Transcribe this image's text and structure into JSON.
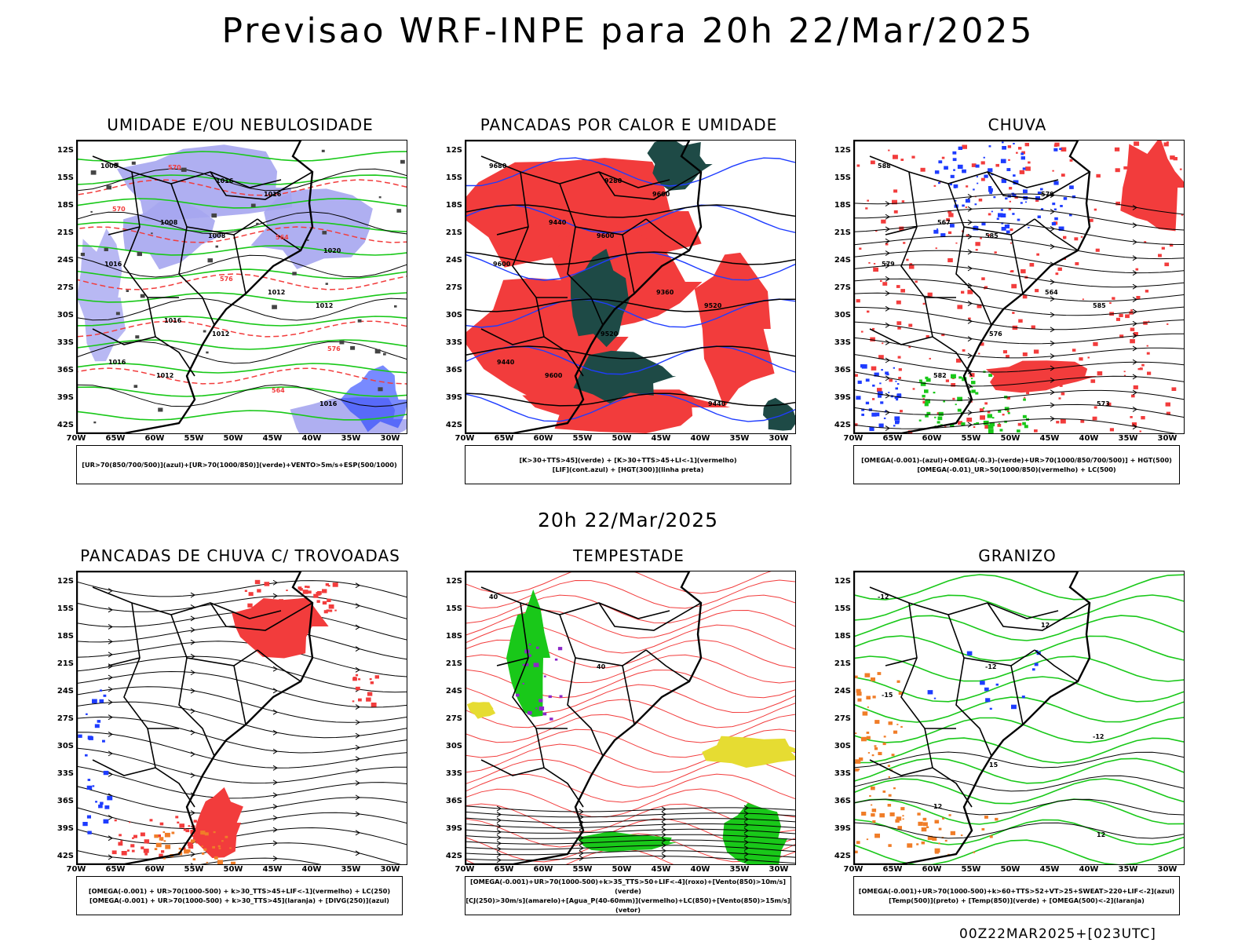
{
  "title": "Previsao WRF-INPE  para 20h 22/Mar/2025",
  "middle_title": "20h 22/Mar/2025",
  "footer": "00Z22MAR2025+[023UTC]",
  "lat_labels": [
    "12S",
    "15S",
    "18S",
    "21S",
    "24S",
    "27S",
    "30S",
    "33S",
    "36S",
    "39S",
    "42S"
  ],
  "lon_labels": [
    "70W",
    "65W",
    "60W",
    "55W",
    "50W",
    "45W",
    "40W",
    "35W",
    "30W"
  ],
  "colors": {
    "red": "#f23c3c",
    "green": "#19c819",
    "blue": "#1e3cff",
    "lilac": "#a6a6f0",
    "dark": "#1e4a46",
    "orange": "#f07d28",
    "yellow": "#e6dc32",
    "purple": "#8c28c8"
  },
  "panels": [
    {
      "title": "UMIDADE E/OU NEBULOSIDADE",
      "legend": [
        "[UR>70(850/700/500)](azul)+[UR>70(1000/850)](verde)+VENTO>5m/s+ESP(500/1000)"
      ],
      "contour_labels": [
        "1008",
        "1008",
        "1012",
        "1012",
        "1016",
        "1016",
        "1012",
        "1016",
        "1008",
        "1012",
        "1016",
        "1016",
        "1020",
        "1016",
        "564",
        "570",
        "576",
        "576",
        "570",
        "564"
      ]
    },
    {
      "title": "PANCADAS POR CALOR E UMIDADE",
      "legend": [
        "[K>30+TTS>45](verde) + [K>30+TTS>45+LI<-1](vermelho)",
        "[LIF](cont.azul) + [HGT(300)](linha preta)"
      ],
      "contour_labels": [
        "9680",
        "9600",
        "9520",
        "9600",
        "9600",
        "9600",
        "9520",
        "9440",
        "9440",
        "9360",
        "9440",
        "9280"
      ]
    },
    {
      "title": "CHUVA",
      "legend": [
        "[OMEGA(-0.001)-(azul)+OMEGA(-0.3)-(verde)+UR>70(1000/850/700/500)] + HGT(500)",
        "[OMEGA(-0.01)_UR>50(1000/850)(vermelho) + LC(500)"
      ],
      "contour_labels": [
        "588",
        "585",
        "585",
        "582",
        "579",
        "579",
        "576",
        "573",
        "567",
        "564"
      ]
    },
    {
      "title": "PANCADAS DE CHUVA C/ TROVOADAS",
      "legend": [
        "[OMEGA(-0.001) + UR>70(1000-500) + k>30_TTS>45+LIF<-1](vermelho) + LC(250)",
        "[OMEGA(-0.001) + UR>70(1000-500) + k>30_TTS>45](laranja) + [DIVG(250)](azul)"
      ],
      "contour_labels": []
    },
    {
      "title": "TEMPESTADE",
      "legend": [
        "[OMEGA(-0.001)+UR>70(1000-500)+k>35_TTS>50+LIF<-4](roxo)+[Vento(850)>10m/s](verde)",
        "[CJ(250)>30m/s](amarelo)+[Agua_P(40-60mm)](vermelho)+LC(850)+[Vento(850)>15m/s](vetor)"
      ],
      "contour_labels": [
        "40",
        "40"
      ]
    },
    {
      "title": "GRANIZO",
      "legend": [
        "[OMEGA(-0.001)+UR>70(1000-500)+k>60+TTS>52+VT>25+SWEAT>220+LIF<-2](azul)",
        "[Temp(500)](preto) + [Temp(850)](verde) + [OMEGA(500)<-2](laranja)"
      ],
      "contour_labels": [
        "-12",
        "-12",
        "-12",
        "12",
        "12",
        "-15",
        "15",
        "12"
      ]
    }
  ]
}
